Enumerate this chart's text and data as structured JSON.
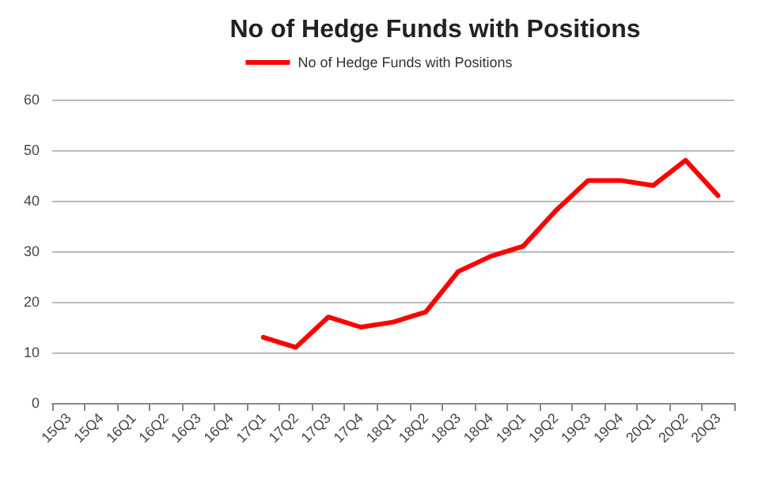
{
  "chart_data": {
    "type": "line",
    "title": "No of Hedge Funds with Positions",
    "categories": [
      "15Q3",
      "15Q4",
      "16Q1",
      "16Q2",
      "16Q3",
      "16Q4",
      "17Q1",
      "17Q2",
      "17Q3",
      "17Q4",
      "18Q1",
      "18Q2",
      "18Q3",
      "18Q4",
      "19Q1",
      "19Q2",
      "19Q3",
      "19Q4",
      "20Q1",
      "20Q2",
      "20Q3"
    ],
    "series": [
      {
        "name": "No of Hedge Funds with Positions",
        "color": "#ff0000",
        "values": [
          null,
          null,
          null,
          null,
          null,
          null,
          13,
          11,
          17,
          15,
          16,
          18,
          26,
          29,
          31,
          38,
          44,
          44,
          43,
          48,
          41
        ]
      }
    ],
    "ylim": [
      0,
      60
    ],
    "yticks": [
      0,
      10,
      20,
      30,
      40,
      50,
      60
    ],
    "grid": "y",
    "legend": "top",
    "marker": "none",
    "line_style": "solid"
  }
}
